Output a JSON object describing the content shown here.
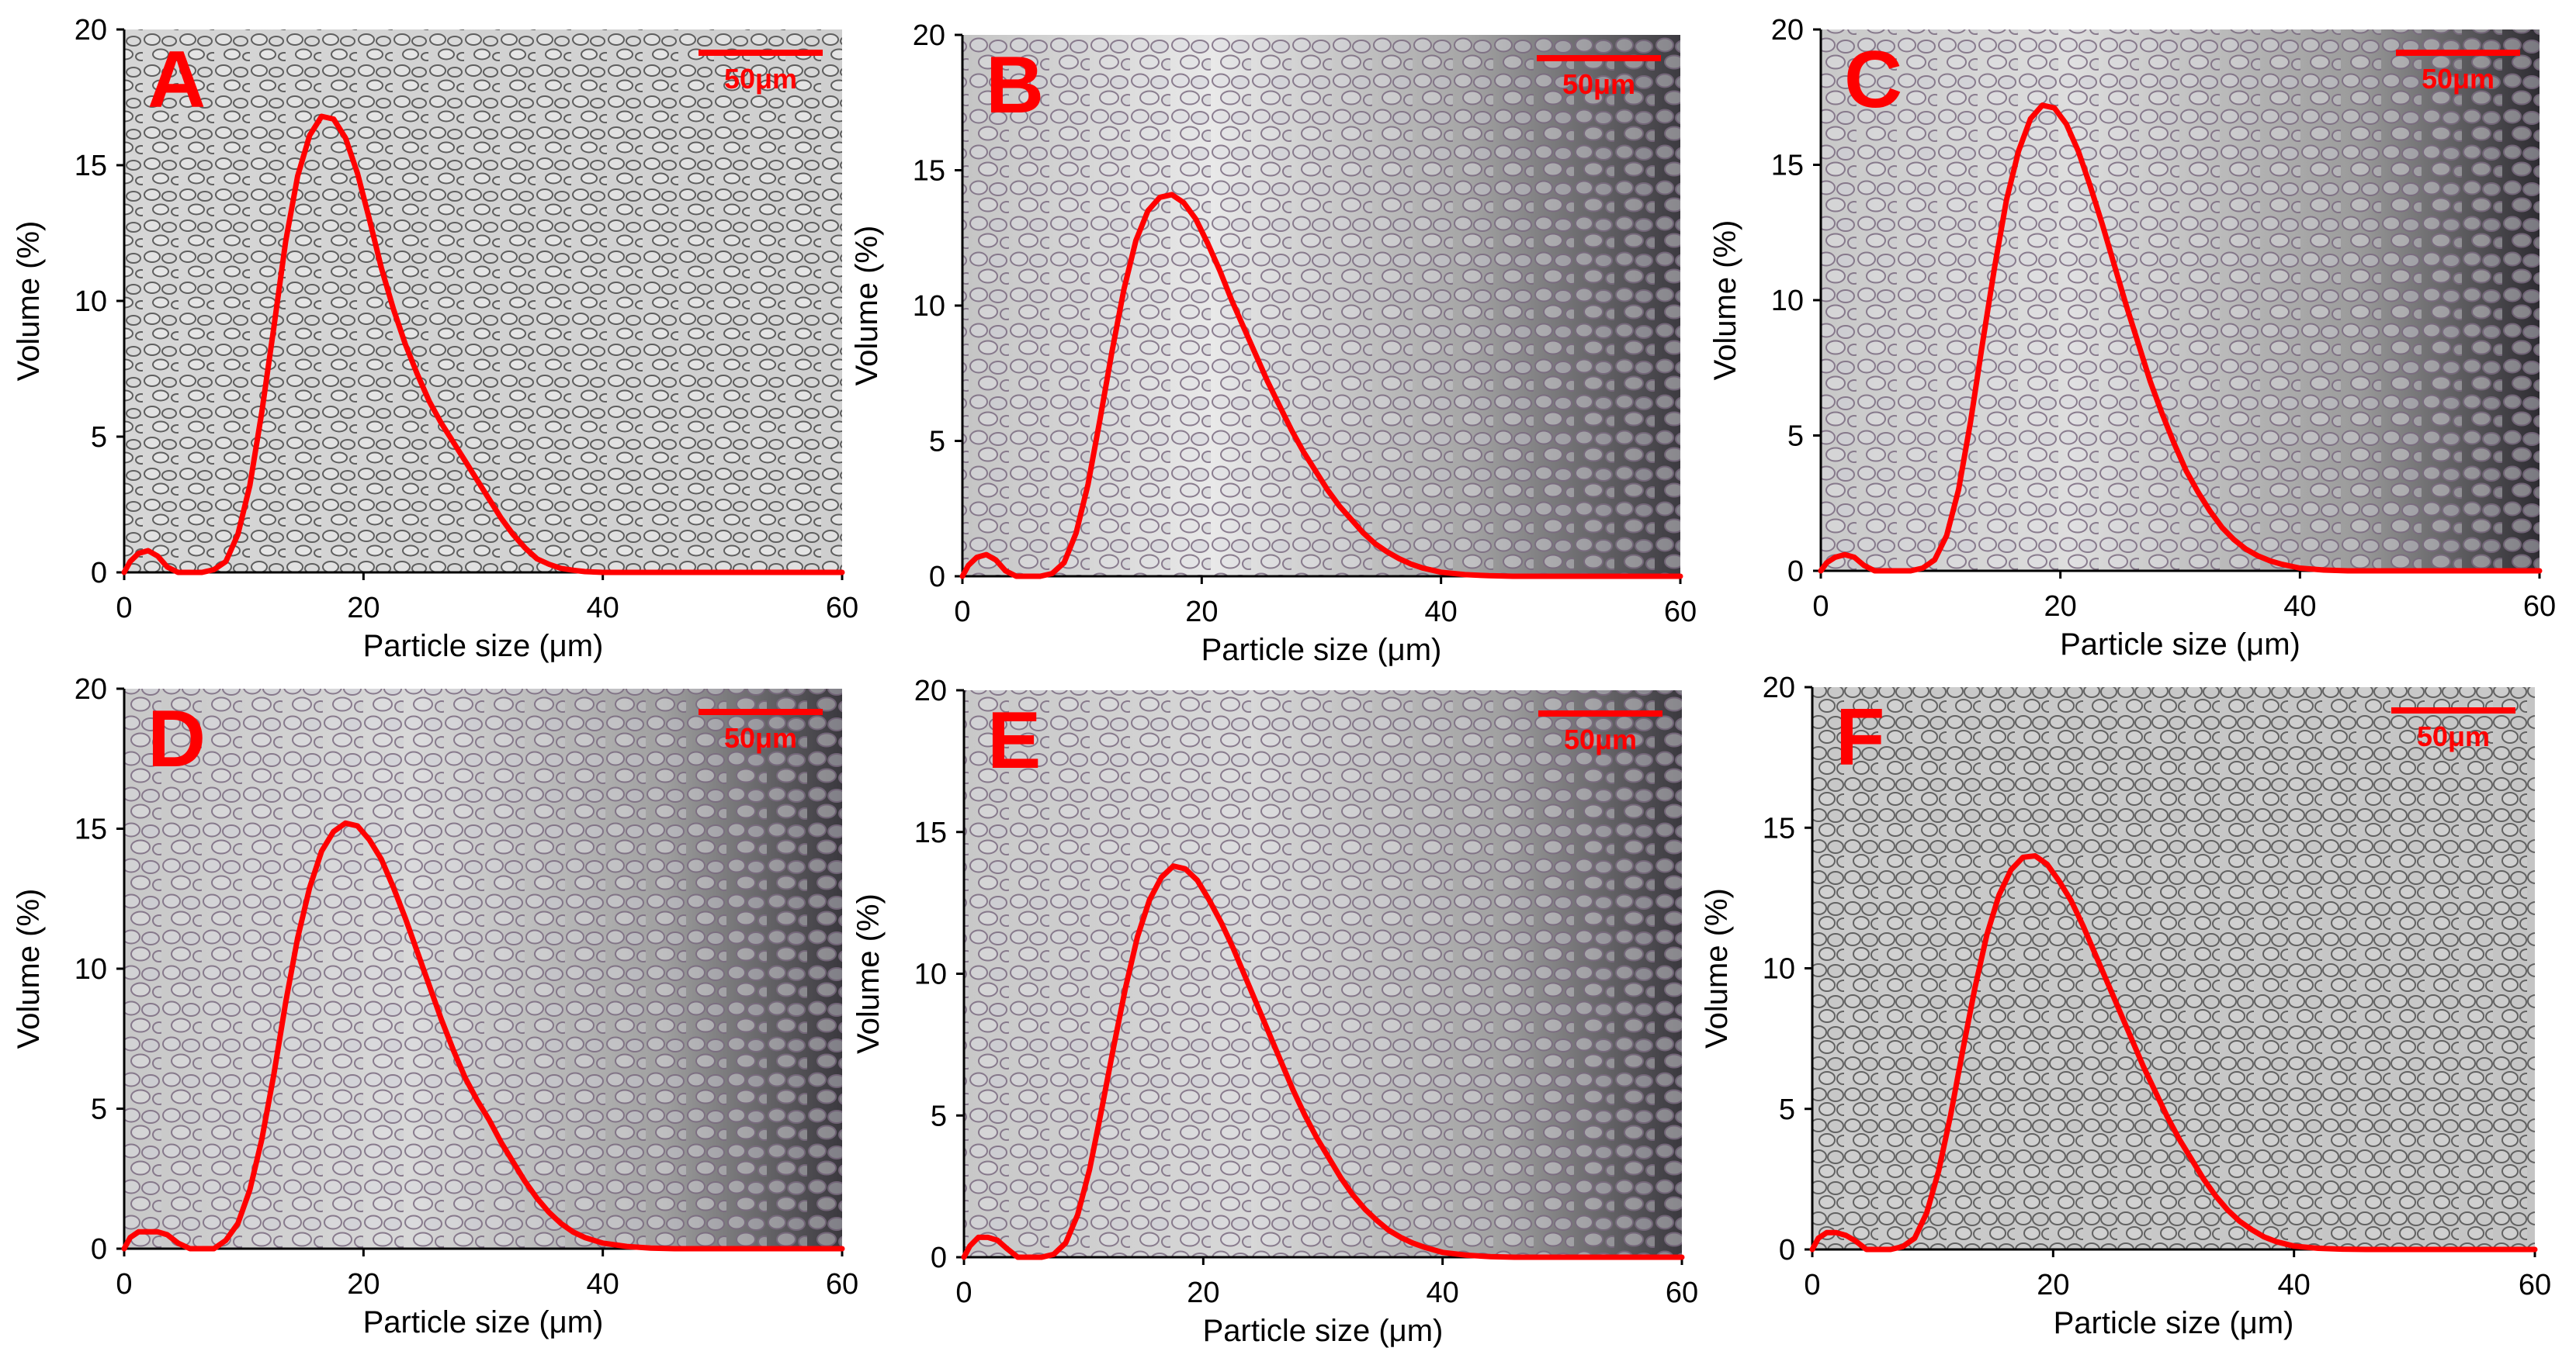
{
  "colors": {
    "curve": "#ff0000",
    "scale_bar": "#ff0000",
    "panel_letter": "#ff0000",
    "axis": "#000000",
    "text": "#000000"
  },
  "chart_data": [
    {
      "type": "line",
      "panel_label": "A",
      "scale_bar_label": "50μm",
      "xlabel": "Particle size (μm)",
      "ylabel": "Volume (%)",
      "xlim": [
        0,
        60
      ],
      "ylim": [
        0,
        20
      ],
      "xticks": [
        "0",
        "20",
        "40",
        "60"
      ],
      "yticks": [
        "0",
        "5",
        "10",
        "15",
        "20"
      ],
      "background": "micrograph of granules, light grey",
      "series": [
        {
          "x": [
            0,
            0.5,
            1.2,
            2,
            2.8,
            3.6,
            4.5,
            5.5,
            6.5,
            7.5,
            8.5,
            9.5,
            10.5,
            11.5,
            12.5,
            13.5,
            14.5,
            15.5,
            16.5,
            17.5,
            18.5,
            19.5,
            20.5,
            21.5,
            22.5,
            23.5,
            24.5,
            25.5,
            26.5,
            27.5,
            28.5,
            29.5,
            30.5,
            31.5,
            32.5,
            33.5,
            34.5,
            35.5,
            36.5,
            37.5,
            38.5,
            40,
            45,
            50,
            60
          ],
          "y": [
            0,
            0.4,
            0.7,
            0.8,
            0.6,
            0.2,
            0,
            0,
            0,
            0.1,
            0.4,
            1.4,
            3.2,
            5.9,
            9.0,
            12.2,
            14.6,
            16.1,
            16.8,
            16.7,
            16.0,
            14.7,
            13.0,
            11.2,
            9.7,
            8.4,
            7.3,
            6.3,
            5.5,
            4.8,
            4.1,
            3.4,
            2.7,
            2.0,
            1.4,
            0.9,
            0.5,
            0.3,
            0.15,
            0.08,
            0.03,
            0,
            0,
            0,
            0
          ]
        }
      ]
    },
    {
      "type": "line",
      "panel_label": "B",
      "scale_bar_label": "50μm",
      "xlabel": "Particle size (μm)",
      "ylabel": "Volume (%)",
      "xlim": [
        0,
        60
      ],
      "ylim": [
        0,
        20
      ],
      "xticks": [
        "0",
        "20",
        "40",
        "60"
      ],
      "yticks": [
        "0",
        "5",
        "10",
        "15",
        "20"
      ],
      "background": "micrograph of granules, light to dark grey gradient",
      "series": [
        {
          "x": [
            0,
            0.5,
            1.2,
            2,
            2.8,
            3.6,
            4.5,
            5.5,
            6.5,
            7.5,
            8.5,
            9.5,
            10.5,
            11.5,
            12.5,
            13.5,
            14.5,
            15.5,
            16.5,
            17.5,
            18.5,
            19.5,
            20.5,
            21.5,
            22.5,
            23.5,
            24.5,
            25.5,
            26.5,
            27.5,
            28.5,
            29.5,
            30.5,
            31.5,
            32.5,
            33.5,
            34.5,
            35.5,
            36.5,
            37.5,
            38.5,
            40,
            42,
            44,
            46,
            50,
            60
          ],
          "y": [
            0,
            0.4,
            0.7,
            0.8,
            0.6,
            0.2,
            0,
            0,
            0,
            0.1,
            0.5,
            1.6,
            3.4,
            5.8,
            8.3,
            10.6,
            12.4,
            13.5,
            14.0,
            14.1,
            13.8,
            13.2,
            12.3,
            11.3,
            10.2,
            9.2,
            8.2,
            7.2,
            6.3,
            5.4,
            4.6,
            3.9,
            3.2,
            2.6,
            2.1,
            1.6,
            1.2,
            0.9,
            0.65,
            0.45,
            0.3,
            0.15,
            0.06,
            0.02,
            0,
            0,
            0
          ]
        }
      ]
    },
    {
      "type": "line",
      "panel_label": "C",
      "scale_bar_label": "50μm",
      "xlabel": "Particle size (μm)",
      "ylabel": "Volume (%)",
      "xlim": [
        0,
        60
      ],
      "ylim": [
        0,
        20
      ],
      "xticks": [
        "0",
        "20",
        "40",
        "60"
      ],
      "yticks": [
        "0",
        "5",
        "10",
        "15",
        "20"
      ],
      "background": "micrograph of granules, light to dark grey gradient",
      "series": [
        {
          "x": [
            0,
            0.5,
            1.2,
            2,
            2.8,
            3.6,
            4.5,
            5.5,
            6.5,
            7.5,
            8.5,
            9.5,
            10.5,
            11.5,
            12.5,
            13.5,
            14.5,
            15.5,
            16.5,
            17.5,
            18.5,
            19.5,
            20.5,
            21.5,
            22.5,
            23.5,
            24.5,
            25.5,
            26.5,
            27.5,
            28.5,
            29.5,
            30.5,
            31.5,
            32.5,
            33.5,
            34.5,
            35.5,
            36.5,
            37.5,
            38.5,
            40,
            42,
            44,
            46,
            50,
            60
          ],
          "y": [
            0,
            0.3,
            0.5,
            0.6,
            0.5,
            0.2,
            0,
            0,
            0,
            0,
            0.1,
            0.4,
            1.3,
            3.0,
            5.5,
            8.4,
            11.2,
            13.7,
            15.5,
            16.7,
            17.2,
            17.1,
            16.5,
            15.5,
            14.2,
            12.8,
            11.3,
            9.8,
            8.4,
            7.0,
            5.8,
            4.7,
            3.7,
            2.9,
            2.2,
            1.6,
            1.15,
            0.8,
            0.55,
            0.37,
            0.24,
            0.1,
            0.03,
            0,
            0,
            0,
            0
          ]
        }
      ]
    },
    {
      "type": "line",
      "panel_label": "D",
      "scale_bar_label": "50μm",
      "xlabel": "Particle size (μm)",
      "ylabel": "Volume (%)",
      "xlim": [
        0,
        60
      ],
      "ylim": [
        0,
        20
      ],
      "xticks": [
        "0",
        "20",
        "40",
        "60"
      ],
      "yticks": [
        "0",
        "5",
        "10",
        "15",
        "20"
      ],
      "background": "micrograph of granules, light to dark grey gradient",
      "series": [
        {
          "x": [
            0,
            0.5,
            1.2,
            2,
            2.8,
            3.6,
            4.5,
            5.5,
            6.5,
            7.5,
            8.5,
            9.5,
            10.5,
            11.5,
            12.5,
            13.5,
            14.5,
            15.5,
            16.5,
            17.5,
            18.5,
            19.5,
            20.5,
            21.5,
            22.5,
            23.5,
            24.5,
            25.5,
            26.5,
            27.5,
            28.5,
            29.5,
            30.5,
            31.5,
            32.5,
            33.5,
            34.5,
            35.5,
            36.5,
            37.5,
            38.5,
            40,
            42,
            44,
            46,
            50,
            60
          ],
          "y": [
            0,
            0.4,
            0.6,
            0.6,
            0.6,
            0.5,
            0.2,
            0,
            0,
            0,
            0.3,
            0.9,
            2.1,
            3.9,
            6.2,
            8.8,
            11.1,
            12.9,
            14.2,
            14.9,
            15.2,
            15.1,
            14.6,
            13.9,
            12.9,
            11.8,
            10.6,
            9.4,
            8.2,
            7.1,
            6.1,
            5.3,
            4.6,
            3.8,
            3.1,
            2.4,
            1.8,
            1.3,
            0.9,
            0.6,
            0.4,
            0.2,
            0.08,
            0.02,
            0,
            0,
            0
          ]
        }
      ]
    },
    {
      "type": "line",
      "panel_label": "E",
      "scale_bar_label": "50μm",
      "xlabel": "Particle size (μm)",
      "ylabel": "Volume (%)",
      "xlim": [
        0,
        60
      ],
      "ylim": [
        0,
        20
      ],
      "xticks": [
        "0",
        "20",
        "40",
        "60"
      ],
      "yticks": [
        "0",
        "5",
        "10",
        "15",
        "20"
      ],
      "background": "micrograph of granules, light to dark grey gradient",
      "series": [
        {
          "x": [
            0,
            0.5,
            1.2,
            2,
            2.8,
            3.6,
            4.5,
            5.5,
            6.5,
            7.5,
            8.5,
            9.5,
            10.5,
            11.5,
            12.5,
            13.5,
            14.5,
            15.5,
            16.5,
            17.5,
            18.5,
            19.5,
            20.5,
            21.5,
            22.5,
            23.5,
            24.5,
            25.5,
            26.5,
            27.5,
            28.5,
            29.5,
            30.5,
            31.5,
            32.5,
            33.5,
            34.5,
            35.5,
            36.5,
            37.5,
            38.5,
            40,
            42,
            44,
            46,
            50,
            60
          ],
          "y": [
            0,
            0.4,
            0.7,
            0.7,
            0.6,
            0.3,
            0,
            0,
            0,
            0.1,
            0.5,
            1.5,
            3.1,
            5.2,
            7.4,
            9.5,
            11.3,
            12.6,
            13.4,
            13.8,
            13.7,
            13.3,
            12.6,
            11.8,
            10.9,
            9.9,
            8.9,
            7.9,
            6.9,
            5.9,
            5.0,
            4.2,
            3.5,
            2.8,
            2.2,
            1.7,
            1.3,
            0.95,
            0.7,
            0.5,
            0.35,
            0.17,
            0.07,
            0.02,
            0,
            0,
            0
          ]
        }
      ]
    },
    {
      "type": "line",
      "panel_label": "F",
      "scale_bar_label": "50μm",
      "xlabel": "Particle size (μm)",
      "ylabel": "Volume (%)",
      "xlim": [
        0,
        60
      ],
      "ylim": [
        0,
        20
      ],
      "xticks": [
        "0",
        "20",
        "40",
        "60"
      ],
      "yticks": [
        "0",
        "5",
        "10",
        "15",
        "20"
      ],
      "background": "micrograph of granules, uniform grey",
      "series": [
        {
          "x": [
            0,
            0.5,
            1.2,
            2,
            2.8,
            3.6,
            4.5,
            5.5,
            6.5,
            7.5,
            8.5,
            9.5,
            10.5,
            11.5,
            12.5,
            13.5,
            14.5,
            15.5,
            16.5,
            17.5,
            18.5,
            19.5,
            20.5,
            21.5,
            22.5,
            23.5,
            24.5,
            25.5,
            26.5,
            27.5,
            28.5,
            29.5,
            30.5,
            31.5,
            32.5,
            33.5,
            34.5,
            35.5,
            36.5,
            37.5,
            38.5,
            40,
            42,
            44,
            46,
            50,
            60
          ],
          "y": [
            0,
            0.4,
            0.6,
            0.6,
            0.5,
            0.3,
            0,
            0,
            0,
            0.1,
            0.4,
            1.3,
            2.8,
            4.8,
            7.1,
            9.3,
            11.2,
            12.6,
            13.5,
            13.95,
            14.0,
            13.7,
            13.1,
            12.4,
            11.5,
            10.5,
            9.5,
            8.5,
            7.5,
            6.5,
            5.6,
            4.7,
            3.9,
            3.2,
            2.5,
            1.9,
            1.4,
            1.0,
            0.7,
            0.45,
            0.28,
            0.12,
            0.04,
            0.01,
            0,
            0,
            0
          ]
        }
      ]
    }
  ]
}
